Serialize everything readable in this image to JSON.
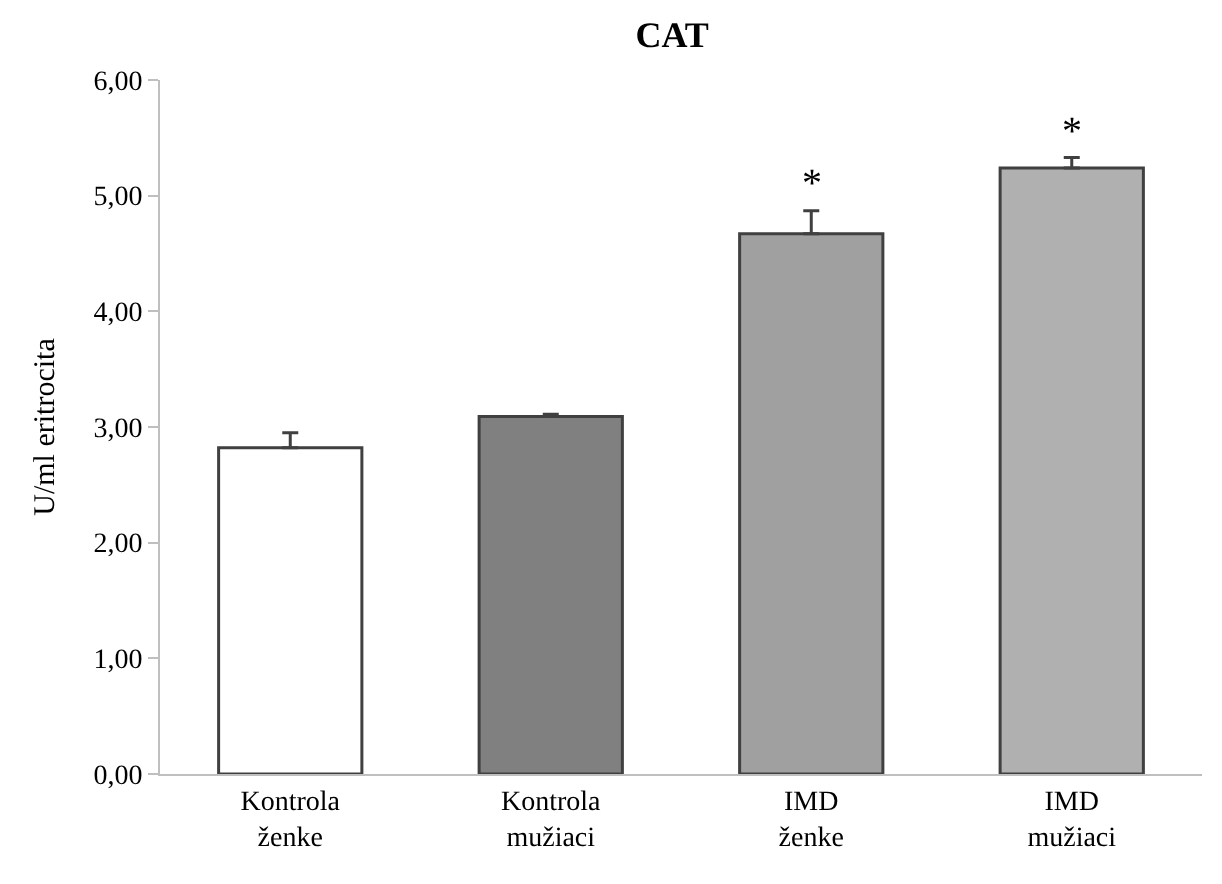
{
  "chart_data": {
    "type": "bar",
    "title": "CAT",
    "ylabel": "U/ml eritrocita",
    "categories": [
      "Kontrola\nženke",
      "Kontrola\nmužiaci",
      "IMD\nženke",
      "IMD\nmužiaci"
    ],
    "values": [
      2.82,
      3.09,
      4.67,
      5.24
    ],
    "colors": [
      "#ffffff",
      "#808080",
      "#a0a0a0",
      "#b0b0b0"
    ],
    "errors": [
      [
        2.82,
        2.95
      ],
      [
        3.09,
        3.11
      ],
      [
        4.67,
        4.87
      ],
      [
        5.24,
        5.33
      ]
    ],
    "ylim": [
      0,
      6
    ],
    "yticks": [
      {
        "value": 0,
        "label": "0,00"
      },
      {
        "value": 1,
        "label": "1,00"
      },
      {
        "value": 2,
        "label": "2,00"
      },
      {
        "value": 3,
        "label": "3,00"
      },
      {
        "value": 4,
        "label": "4,00"
      },
      {
        "value": 5,
        "label": "5,00"
      },
      {
        "value": 6,
        "label": "6,00"
      }
    ],
    "annotations": [
      {
        "text": "*",
        "x": "IMD\nženke",
        "y": 4.87
      },
      {
        "text": "*",
        "x": "IMD\nmužiaci",
        "y": 5.33
      }
    ],
    "legend": false
  }
}
